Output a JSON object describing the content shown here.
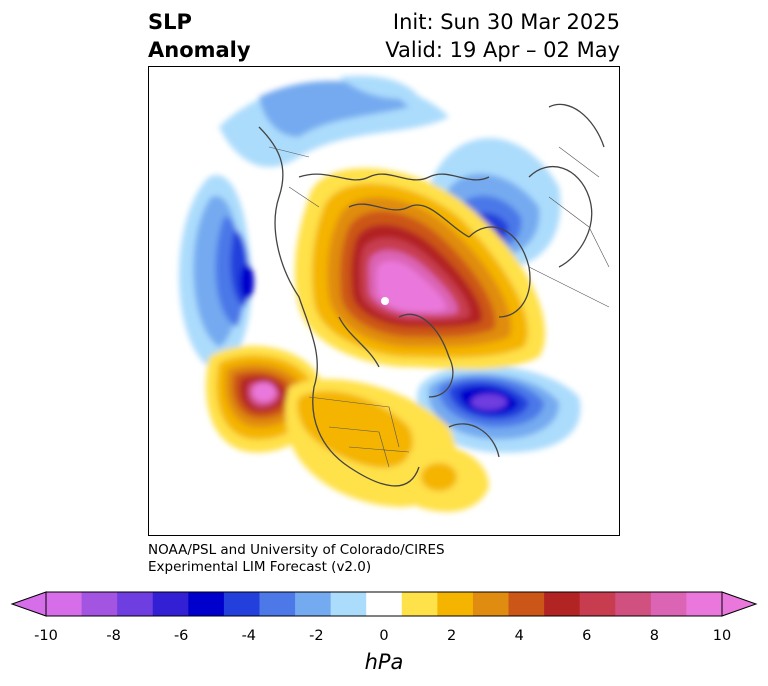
{
  "title": {
    "left_line1": "SLP",
    "left_line2": "Anomaly",
    "right_line1": "Init: Sun 30 Mar 2025",
    "right_line2": "Valid: 19 Apr – 02 May"
  },
  "credit": {
    "line1": "NOAA/PSL and University of Colorado/CIRES",
    "line2": "Experimental LIM Forecast (v2.0)"
  },
  "colorbar": {
    "unit": "hPa",
    "ticks": [
      "-10",
      "-8",
      "-6",
      "-4",
      "-2",
      "0",
      "2",
      "4",
      "6",
      "8",
      "10"
    ],
    "colors": [
      "#d56ee8",
      "#a354e0",
      "#6f3ee0",
      "#3420d4",
      "#0000cc",
      "#2440dc",
      "#4c78e8",
      "#74aaf0",
      "#acdcfc",
      "#ffffff",
      "#ffe14a",
      "#f4b400",
      "#e08c10",
      "#cc5618",
      "#b22424",
      "#c83c50",
      "#d05080",
      "#dc64b4",
      "#ea78dc"
    ]
  },
  "map": {
    "projection": "north-polar-stereographic",
    "field": "sea level pressure anomaly"
  }
}
